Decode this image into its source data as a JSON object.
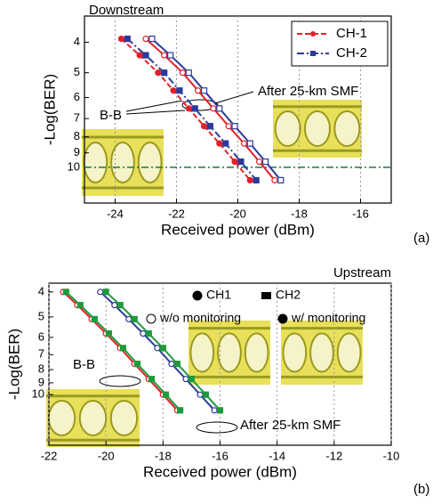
{
  "chart_data": [
    {
      "type": "line",
      "subtitle": "Downstream",
      "xlabel": "Received power (dBm)",
      "ylabel": "-Log(BER)",
      "panel_label": "(a)",
      "annotations": [
        "B-B",
        "After 25-km SMF"
      ],
      "xlim": [
        -25,
        -15
      ],
      "xticks": [
        -24,
        -22,
        -20,
        -18,
        -16
      ],
      "ylim": [
        3.3,
        13
      ],
      "yticks": [
        4,
        5,
        6,
        7,
        8,
        9,
        10
      ],
      "y_scale": "log",
      "y_reversed": true,
      "grid": true,
      "threshold": 10,
      "threshold_color": "#1a7a3a",
      "legend": "upper right",
      "series": [
        {
          "name": "CH-1",
          "color": "#e0202a",
          "dash": "6 3",
          "marker": "circle",
          "filled": true,
          "x": [
            -23.8,
            -23.2,
            -22.6,
            -22.1,
            -21.6,
            -21.1,
            -20.6,
            -20.1,
            -19.6
          ],
          "values": [
            3.9,
            4.4,
            5.0,
            5.7,
            6.5,
            7.4,
            8.4,
            9.6,
            11.0
          ]
        },
        {
          "name": "CH-2",
          "color": "#2b3a9a",
          "dash": "8 3 2 3",
          "marker": "square",
          "filled": true,
          "x": [
            -23.6,
            -23.0,
            -22.4,
            -21.9,
            -21.4,
            -20.9,
            -20.4,
            -19.9,
            -19.4
          ],
          "values": [
            3.9,
            4.4,
            5.0,
            5.7,
            6.5,
            7.4,
            8.4,
            9.6,
            11.0
          ]
        },
        {
          "color": "#e0202a",
          "marker": "circle",
          "filled": false,
          "x": [
            -23.0,
            -22.4,
            -21.8,
            -21.3,
            -20.8,
            -20.3,
            -19.8,
            -19.3,
            -18.8
          ],
          "values": [
            3.9,
            4.4,
            5.0,
            5.7,
            6.5,
            7.4,
            8.4,
            9.6,
            11.0
          ]
        },
        {
          "color": "#2b3a9a",
          "marker": "square",
          "filled": false,
          "x": [
            -22.8,
            -22.2,
            -21.6,
            -21.1,
            -20.6,
            -20.1,
            -19.6,
            -19.1,
            -18.6
          ],
          "values": [
            3.9,
            4.4,
            5.0,
            5.7,
            6.5,
            7.4,
            8.4,
            9.6,
            11.0
          ]
        }
      ]
    },
    {
      "type": "line",
      "subtitle": "Upstream",
      "xlabel": "Received power (dBm)",
      "ylabel": "-Log(BER)",
      "panel_label": "(b)",
      "annotations": [
        "B-B",
        "After 25-km SMF"
      ],
      "legend_labels": [
        "CH1",
        "CH2",
        "w/o monitoring",
        "w/ monitoring"
      ],
      "xlim": [
        -22,
        -10
      ],
      "xticks": [
        -22,
        -20,
        -18,
        -16,
        -14,
        -12,
        -10
      ],
      "ylim": [
        3.7,
        15.7
      ],
      "yticks": [
        4,
        5,
        6,
        7,
        8,
        9,
        10
      ],
      "y_scale": "log",
      "y_reversed": true,
      "grid": true,
      "series": [
        {
          "color": "#e0202a",
          "marker": "circle",
          "filled": false,
          "x": [
            -21.5,
            -21.0,
            -20.5,
            -20.0,
            -19.5,
            -19.0,
            -18.5,
            -18.0,
            -17.5
          ],
          "values": [
            4.0,
            4.5,
            5.1,
            5.8,
            6.6,
            7.6,
            8.7,
            10.0,
            11.5
          ]
        },
        {
          "color": "#1f9a3a",
          "marker": "square",
          "filled": true,
          "x": [
            -21.4,
            -20.9,
            -20.4,
            -19.9,
            -19.4,
            -18.9,
            -18.4,
            -17.9,
            -17.4
          ],
          "values": [
            4.0,
            4.5,
            5.1,
            5.8,
            6.6,
            7.6,
            8.7,
            10.0,
            11.5
          ]
        },
        {
          "color": "#2b3a9a",
          "marker": "circle",
          "filled": false,
          "x": [
            -20.2,
            -19.7,
            -19.2,
            -18.7,
            -18.2,
            -17.7,
            -17.2,
            -16.7,
            -16.2
          ],
          "values": [
            4.0,
            4.5,
            5.1,
            5.8,
            6.6,
            7.6,
            8.7,
            10.0,
            11.5
          ]
        },
        {
          "color": "#1f9a3a",
          "marker": "square",
          "filled": true,
          "x": [
            -20.0,
            -19.5,
            -19.0,
            -18.5,
            -18.0,
            -17.5,
            -17.0,
            -16.5,
            -16.0
          ],
          "values": [
            4.0,
            4.5,
            5.1,
            5.8,
            6.6,
            7.6,
            8.7,
            10.0,
            11.5
          ]
        }
      ]
    }
  ]
}
